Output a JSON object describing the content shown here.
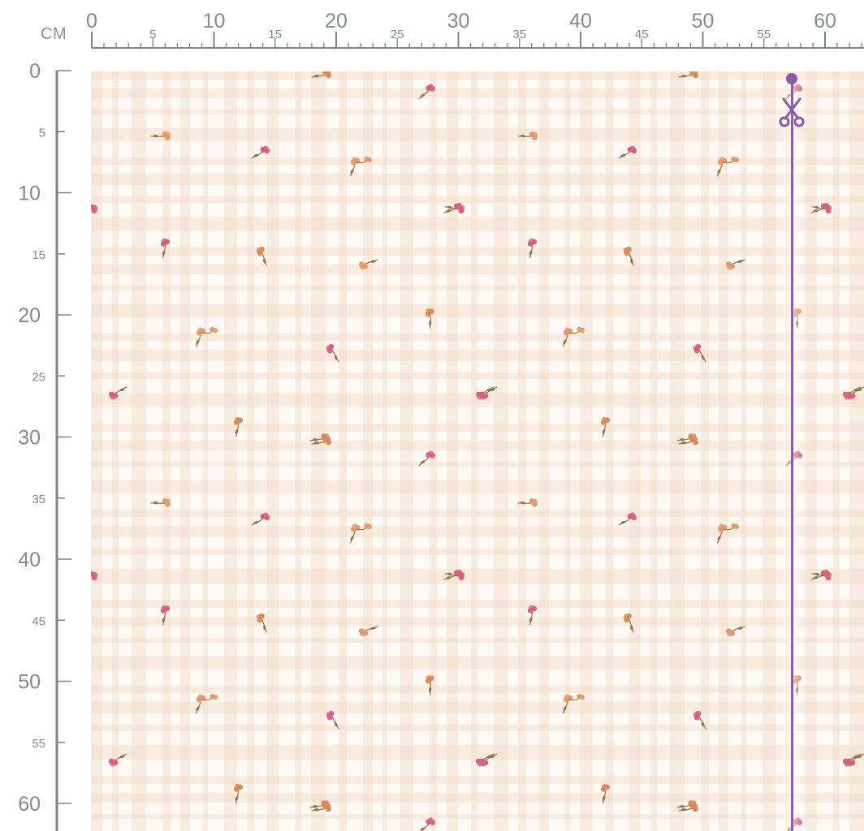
{
  "ruler": {
    "unit": "CM",
    "top_major_labels": [
      "0",
      "10",
      "20",
      "30",
      "40",
      "50",
      "60"
    ],
    "top_minor_labels": [
      "5",
      "15",
      "25",
      "35",
      "45",
      "55"
    ],
    "left_major_labels": [
      "0",
      "10",
      "20",
      "30",
      "40",
      "50",
      "60"
    ],
    "left_minor_labels": [
      "5",
      "15",
      "25",
      "35",
      "45",
      "55"
    ]
  },
  "fabric": {
    "gingham_color": "#f0d9c4",
    "flower_colors": [
      "#d9607e",
      "#e59a6c",
      "#d98a58"
    ],
    "leaf_color": "#8c7a4e"
  },
  "cut_marker": {
    "icon": "scissors-icon",
    "color": "#8b5ba3"
  }
}
